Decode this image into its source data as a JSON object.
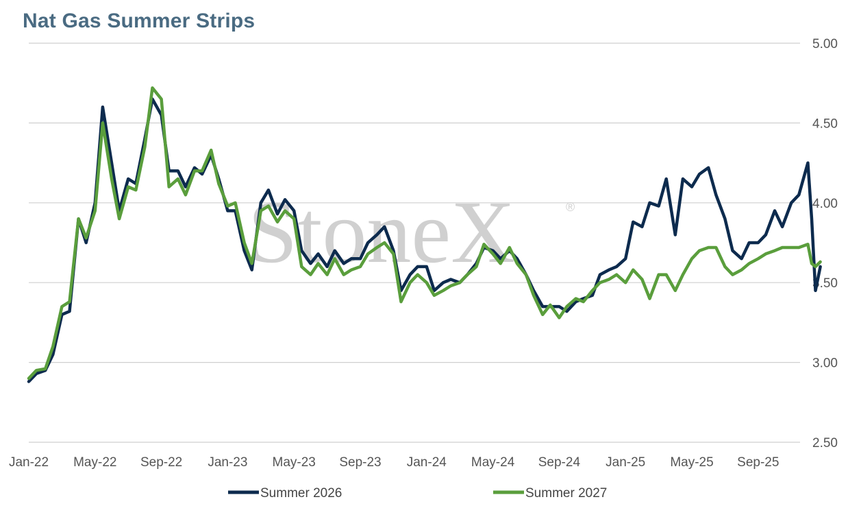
{
  "chart_data": {
    "type": "line",
    "title": "Nat Gas Summer Strips",
    "xlabel": "",
    "ylabel": "",
    "x_tick_labels": [
      "Jan-22",
      "May-22",
      "Sep-22",
      "Jan-23",
      "May-23",
      "Sep-23",
      "Jan-24",
      "May-24",
      "Sep-24",
      "Jan-25",
      "May-25",
      "Sep-25"
    ],
    "y_tick_labels": [
      "2.50",
      "3.00",
      "3.50",
      "4.00",
      "4.50",
      "5.00"
    ],
    "ylim": [
      2.5,
      5.0
    ],
    "y_ticks": [
      2.5,
      3.0,
      3.5,
      4.0,
      4.5,
      5.0
    ],
    "x_start": "2022-01",
    "x_end": "2025-12",
    "grid": "horizontal",
    "y_axis_side": "right",
    "legend_position": "bottom",
    "watermark": "StoneX",
    "watermark_mark": "®",
    "series": [
      {
        "name": "Summer 2026",
        "color": "#0d2b4e",
        "points": [
          [
            "2022-01",
            2.88
          ],
          [
            "2022-01-15",
            2.93
          ],
          [
            "2022-02",
            2.95
          ],
          [
            "2022-02-15",
            3.05
          ],
          [
            "2022-03",
            3.3
          ],
          [
            "2022-03-15",
            3.32
          ],
          [
            "2022-04",
            3.9
          ],
          [
            "2022-04-15",
            3.75
          ],
          [
            "2022-05",
            4.0
          ],
          [
            "2022-05-15",
            4.6
          ],
          [
            "2022-06",
            4.25
          ],
          [
            "2022-06-15",
            3.95
          ],
          [
            "2022-07",
            4.15
          ],
          [
            "2022-07-15",
            4.12
          ],
          [
            "2022-08",
            4.4
          ],
          [
            "2022-08-15",
            4.65
          ],
          [
            "2022-09",
            4.55
          ],
          [
            "2022-09-15",
            4.2
          ],
          [
            "2022-10",
            4.2
          ],
          [
            "2022-10-15",
            4.1
          ],
          [
            "2022-11",
            4.22
          ],
          [
            "2022-11-15",
            4.18
          ],
          [
            "2022-12",
            4.3
          ],
          [
            "2022-12-15",
            4.15
          ],
          [
            "2023-01",
            3.95
          ],
          [
            "2023-01-15",
            3.95
          ],
          [
            "2023-02",
            3.7
          ],
          [
            "2023-02-15",
            3.58
          ],
          [
            "2023-03",
            4.0
          ],
          [
            "2023-03-15",
            4.08
          ],
          [
            "2023-04",
            3.93
          ],
          [
            "2023-04-15",
            4.02
          ],
          [
            "2023-05",
            3.95
          ],
          [
            "2023-05-15",
            3.7
          ],
          [
            "2023-06",
            3.62
          ],
          [
            "2023-06-15",
            3.68
          ],
          [
            "2023-07",
            3.6
          ],
          [
            "2023-07-15",
            3.7
          ],
          [
            "2023-08",
            3.62
          ],
          [
            "2023-08-15",
            3.65
          ],
          [
            "2023-09",
            3.65
          ],
          [
            "2023-09-15",
            3.75
          ],
          [
            "2023-10",
            3.8
          ],
          [
            "2023-10-15",
            3.85
          ],
          [
            "2023-11",
            3.7
          ],
          [
            "2023-11-15",
            3.45
          ],
          [
            "2023-12",
            3.55
          ],
          [
            "2023-12-15",
            3.6
          ],
          [
            "2024-01",
            3.6
          ],
          [
            "2024-01-15",
            3.45
          ],
          [
            "2024-02",
            3.5
          ],
          [
            "2024-02-15",
            3.52
          ],
          [
            "2024-03",
            3.5
          ],
          [
            "2024-03-15",
            3.55
          ],
          [
            "2024-04",
            3.62
          ],
          [
            "2024-04-15",
            3.72
          ],
          [
            "2024-05",
            3.7
          ],
          [
            "2024-05-15",
            3.65
          ],
          [
            "2024-06",
            3.7
          ],
          [
            "2024-06-15",
            3.65
          ],
          [
            "2024-07",
            3.55
          ],
          [
            "2024-07-15",
            3.45
          ],
          [
            "2024-08",
            3.35
          ],
          [
            "2024-08-15",
            3.35
          ],
          [
            "2024-09",
            3.35
          ],
          [
            "2024-09-15",
            3.32
          ],
          [
            "2024-10",
            3.38
          ],
          [
            "2024-10-15",
            3.4
          ],
          [
            "2024-11",
            3.42
          ],
          [
            "2024-11-15",
            3.55
          ],
          [
            "2024-12",
            3.58
          ],
          [
            "2024-12-15",
            3.6
          ],
          [
            "2025-01",
            3.65
          ],
          [
            "2025-01-15",
            3.88
          ],
          [
            "2025-02",
            3.85
          ],
          [
            "2025-02-15",
            4.0
          ],
          [
            "2025-03",
            3.98
          ],
          [
            "2025-03-15",
            4.15
          ],
          [
            "2025-04",
            3.8
          ],
          [
            "2025-04-15",
            4.15
          ],
          [
            "2025-05",
            4.1
          ],
          [
            "2025-05-15",
            4.18
          ],
          [
            "2025-06",
            4.22
          ],
          [
            "2025-06-15",
            4.05
          ],
          [
            "2025-07",
            3.9
          ],
          [
            "2025-07-15",
            3.7
          ],
          [
            "2025-08",
            3.65
          ],
          [
            "2025-08-15",
            3.75
          ],
          [
            "2025-09",
            3.75
          ],
          [
            "2025-09-15",
            3.8
          ],
          [
            "2025-10",
            3.95
          ],
          [
            "2025-10-15",
            3.85
          ],
          [
            "2025-11",
            4.0
          ],
          [
            "2025-11-15",
            4.05
          ],
          [
            "2025-12",
            4.25
          ],
          [
            "2025-12-08",
            3.9
          ],
          [
            "2025-12-15",
            3.45
          ],
          [
            "2025-12-24",
            3.6
          ]
        ]
      },
      {
        "name": "Summer 2027",
        "color": "#5a9e3c",
        "points": [
          [
            "2022-01",
            2.9
          ],
          [
            "2022-01-15",
            2.95
          ],
          [
            "2022-02",
            2.96
          ],
          [
            "2022-02-15",
            3.1
          ],
          [
            "2022-03",
            3.35
          ],
          [
            "2022-03-15",
            3.38
          ],
          [
            "2022-04",
            3.9
          ],
          [
            "2022-04-15",
            3.78
          ],
          [
            "2022-05",
            3.95
          ],
          [
            "2022-05-15",
            4.5
          ],
          [
            "2022-06",
            4.15
          ],
          [
            "2022-06-15",
            3.9
          ],
          [
            "2022-07",
            4.1
          ],
          [
            "2022-07-15",
            4.08
          ],
          [
            "2022-08",
            4.35
          ],
          [
            "2022-08-15",
            4.72
          ],
          [
            "2022-09",
            4.65
          ],
          [
            "2022-09-15",
            4.1
          ],
          [
            "2022-10",
            4.15
          ],
          [
            "2022-10-15",
            4.05
          ],
          [
            "2022-11",
            4.2
          ],
          [
            "2022-11-15",
            4.2
          ],
          [
            "2022-12",
            4.33
          ],
          [
            "2022-12-15",
            4.12
          ],
          [
            "2023-01",
            3.98
          ],
          [
            "2023-01-15",
            4.0
          ],
          [
            "2023-02",
            3.75
          ],
          [
            "2023-02-15",
            3.62
          ],
          [
            "2023-03",
            3.95
          ],
          [
            "2023-03-15",
            3.98
          ],
          [
            "2023-04",
            3.88
          ],
          [
            "2023-04-15",
            3.95
          ],
          [
            "2023-05",
            3.9
          ],
          [
            "2023-05-15",
            3.6
          ],
          [
            "2023-06",
            3.55
          ],
          [
            "2023-06-15",
            3.62
          ],
          [
            "2023-07",
            3.55
          ],
          [
            "2023-07-15",
            3.65
          ],
          [
            "2023-08",
            3.55
          ],
          [
            "2023-08-15",
            3.58
          ],
          [
            "2023-09",
            3.6
          ],
          [
            "2023-09-15",
            3.68
          ],
          [
            "2023-10",
            3.72
          ],
          [
            "2023-10-15",
            3.75
          ],
          [
            "2023-11",
            3.68
          ],
          [
            "2023-11-15",
            3.38
          ],
          [
            "2023-12",
            3.5
          ],
          [
            "2023-12-15",
            3.55
          ],
          [
            "2024-01",
            3.5
          ],
          [
            "2024-01-15",
            3.42
          ],
          [
            "2024-02",
            3.45
          ],
          [
            "2024-02-15",
            3.48
          ],
          [
            "2024-03",
            3.5
          ],
          [
            "2024-03-15",
            3.55
          ],
          [
            "2024-04",
            3.6
          ],
          [
            "2024-04-15",
            3.74
          ],
          [
            "2024-05",
            3.68
          ],
          [
            "2024-05-15",
            3.62
          ],
          [
            "2024-06",
            3.72
          ],
          [
            "2024-06-15",
            3.62
          ],
          [
            "2024-07",
            3.55
          ],
          [
            "2024-07-15",
            3.42
          ],
          [
            "2024-08",
            3.3
          ],
          [
            "2024-08-15",
            3.36
          ],
          [
            "2024-09",
            3.28
          ],
          [
            "2024-09-15",
            3.35
          ],
          [
            "2024-10",
            3.4
          ],
          [
            "2024-10-15",
            3.38
          ],
          [
            "2024-11",
            3.45
          ],
          [
            "2024-11-15",
            3.5
          ],
          [
            "2024-12",
            3.52
          ],
          [
            "2024-12-15",
            3.55
          ],
          [
            "2025-01",
            3.5
          ],
          [
            "2025-01-15",
            3.58
          ],
          [
            "2025-02",
            3.52
          ],
          [
            "2025-02-15",
            3.4
          ],
          [
            "2025-03",
            3.55
          ],
          [
            "2025-03-15",
            3.55
          ],
          [
            "2025-04",
            3.45
          ],
          [
            "2025-04-15",
            3.55
          ],
          [
            "2025-05",
            3.65
          ],
          [
            "2025-05-15",
            3.7
          ],
          [
            "2025-06",
            3.72
          ],
          [
            "2025-06-15",
            3.72
          ],
          [
            "2025-07",
            3.6
          ],
          [
            "2025-07-15",
            3.55
          ],
          [
            "2025-08",
            3.58
          ],
          [
            "2025-08-15",
            3.62
          ],
          [
            "2025-09",
            3.65
          ],
          [
            "2025-09-15",
            3.68
          ],
          [
            "2025-10",
            3.7
          ],
          [
            "2025-10-15",
            3.72
          ],
          [
            "2025-11",
            3.72
          ],
          [
            "2025-11-15",
            3.72
          ],
          [
            "2025-12",
            3.74
          ],
          [
            "2025-12-08",
            3.62
          ],
          [
            "2025-12-15",
            3.6
          ],
          [
            "2025-12-24",
            3.63
          ]
        ]
      }
    ]
  }
}
